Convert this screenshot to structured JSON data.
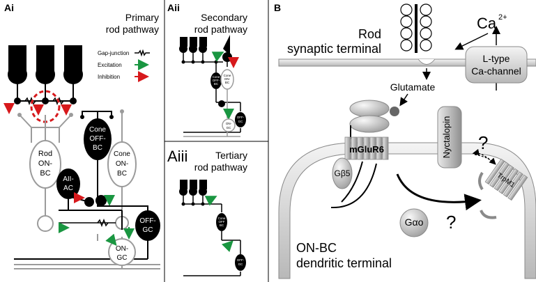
{
  "panels": {
    "ai": {
      "tag": "Ai",
      "title_line1": "Primary",
      "title_line2": "rod pathway"
    },
    "aii": {
      "tag": "Aii",
      "title_line1": "Secondary",
      "title_line2": "rod pathway"
    },
    "aiii": {
      "tag": "Aiii",
      "title_line1": "Tertiary",
      "title_line2": "rod pathway"
    },
    "b": {
      "tag": "B"
    }
  },
  "legend": {
    "gap_junction": "Gap-junction",
    "excitation": "Excitation",
    "inhibition": "Inhibition"
  },
  "cells_ai": {
    "rod_on_bc": [
      "Rod",
      "ON-",
      "BC"
    ],
    "cone_off_bc": [
      "Cone",
      "OFF-",
      "BC"
    ],
    "cone_on_bc": [
      "Cone",
      "ON-",
      "BC"
    ],
    "aii_ac": [
      "AII-",
      "AC"
    ],
    "off_gc": [
      "OFF-",
      "GC"
    ],
    "on_gc": [
      "ON-",
      "GC"
    ]
  },
  "cells_aii": {
    "cone_off_bc": [
      "Cone",
      "OFF-",
      "BC"
    ],
    "cone_on_bc": [
      "Cone",
      "ON-",
      "BC"
    ],
    "off_gc": [
      "OFF-",
      "GC"
    ],
    "on_gc": [
      "ON-",
      "GC"
    ]
  },
  "cells_aiii": {
    "cone_off_bc": [
      "Cone",
      "OFF",
      "BC"
    ],
    "off_gc": [
      "OFF-",
      "GC"
    ]
  },
  "panel_b": {
    "rod_terminal": [
      "Rod",
      "synaptic terminal"
    ],
    "ca": "Ca",
    "ca_sup": "2+",
    "l_type": [
      "L-type",
      "Ca-channel"
    ],
    "glutamate": "Glutamate",
    "mglur6": "mGluR6",
    "nyctalopin": "Nyctalopin",
    "gb5": "Gβ5",
    "gao": "Gαo",
    "trpm1": "TrpM1",
    "question": "?",
    "on_bc": [
      "ON-BC",
      "dendritic terminal"
    ]
  },
  "colors": {
    "excitation": "#1a9641",
    "inhibition": "#d7191c",
    "membrane": "#cfcfcf"
  }
}
